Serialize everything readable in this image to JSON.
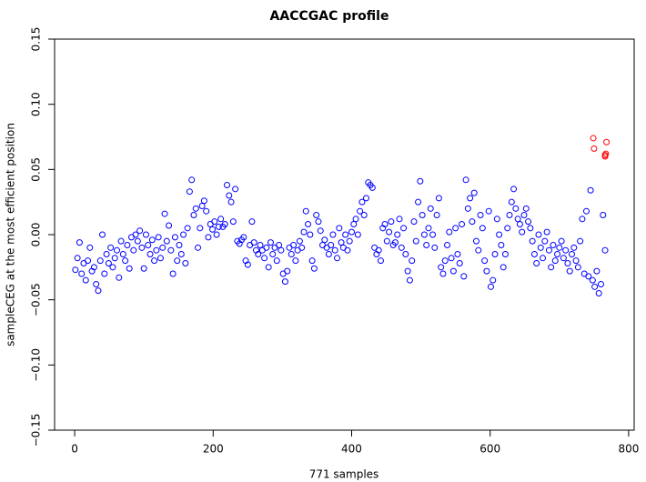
{
  "chart_data": {
    "type": "scatter",
    "title": "AACCGAC profile",
    "x_label": "771 samples",
    "y_label": "sampleCEG at the most efficient position",
    "xlim": [
      -29,
      808
    ],
    "ylim": [
      -0.15,
      0.15
    ],
    "xticks": [
      0,
      200,
      400,
      600,
      800
    ],
    "yticks": [
      {
        "value": -0.15,
        "label": "−0.15"
      },
      {
        "value": -0.1,
        "label": "−0.10"
      },
      {
        "value": -0.05,
        "label": "−0.05"
      },
      {
        "value": 0,
        "label": "0.00"
      },
      {
        "value": 0.05,
        "label": "0.05"
      },
      {
        "value": 0.1,
        "label": "0.10"
      },
      {
        "value": 0.15,
        "label": "0.15"
      }
    ],
    "series": [
      {
        "color": "#0000ff",
        "x": [
          1,
          4,
          7,
          10,
          13,
          16,
          19,
          22,
          25,
          28,
          31,
          34,
          37,
          40,
          43,
          46,
          49,
          52,
          55,
          58,
          61,
          64,
          67,
          70,
          73,
          76,
          79,
          82,
          85,
          88,
          91,
          94,
          97,
          100,
          103,
          106,
          109,
          112,
          115,
          118,
          121,
          124,
          127,
          130,
          133,
          136,
          139,
          142,
          145,
          148,
          151,
          154,
          157,
          160,
          163,
          166,
          169,
          172,
          175,
          178,
          181,
          184,
          187,
          190,
          193,
          196,
          199,
          202,
          205,
          208,
          211,
          214,
          217,
          220,
          223,
          226,
          229,
          232,
          235,
          238,
          241,
          244,
          247,
          250,
          253,
          256,
          259,
          262,
          265,
          268,
          271,
          274,
          277,
          280,
          283,
          286,
          289,
          292,
          295,
          298,
          301,
          304,
          307,
          310,
          313,
          316,
          319,
          322,
          325,
          328,
          331,
          334,
          337,
          340,
          343,
          346,
          349,
          352,
          355,
          358,
          361,
          364,
          367,
          370,
          373,
          376,
          379,
          382,
          385,
          388,
          391,
          394,
          397,
          400,
          403,
          406,
          409,
          412,
          415,
          418,
          421,
          424,
          427,
          430,
          433,
          436,
          439,
          442,
          445,
          448,
          451,
          454,
          457,
          460,
          463,
          466,
          469,
          472,
          475,
          478,
          481,
          484,
          487,
          490,
          493,
          496,
          499,
          502,
          505,
          508,
          511,
          514,
          517,
          520,
          523,
          526,
          529,
          532,
          535,
          538,
          541,
          544,
          547,
          550,
          553,
          556,
          559,
          562,
          565,
          568,
          571,
          574,
          577,
          580,
          583,
          586,
          589,
          592,
          595,
          598,
          601,
          604,
          607,
          610,
          613,
          616,
          619,
          622,
          625,
          628,
          631,
          634,
          637,
          640,
          643,
          646,
          649,
          652,
          655,
          658,
          661,
          664,
          667,
          670,
          673,
          676,
          679,
          682,
          685,
          688,
          691,
          694,
          697,
          700,
          703,
          706,
          709,
          712,
          715,
          718,
          721,
          724,
          727,
          730,
          733,
          736,
          739,
          742,
          745,
          748,
          751,
          754,
          757,
          760,
          763,
          766
        ],
        "values": [
          -0.027,
          -0.018,
          -0.006,
          -0.03,
          -0.022,
          -0.035,
          -0.02,
          -0.01,
          -0.028,
          -0.025,
          -0.038,
          -0.043,
          -0.02,
          0.0,
          -0.03,
          -0.015,
          -0.022,
          -0.01,
          -0.025,
          -0.018,
          -0.012,
          -0.033,
          -0.005,
          -0.015,
          -0.02,
          -0.008,
          -0.026,
          -0.002,
          -0.012,
          0.0,
          -0.005,
          0.003,
          -0.01,
          -0.026,
          0.0,
          -0.008,
          -0.015,
          -0.004,
          -0.02,
          -0.012,
          -0.002,
          -0.018,
          -0.01,
          0.016,
          -0.005,
          0.007,
          -0.012,
          -0.03,
          -0.002,
          -0.02,
          -0.008,
          -0.015,
          0.0,
          -0.022,
          0.005,
          0.033,
          0.042,
          0.015,
          0.02,
          -0.01,
          0.005,
          0.022,
          0.026,
          0.018,
          -0.002,
          0.008,
          0.004,
          0.01,
          0.0,
          0.006,
          0.012,
          0.006,
          0.008,
          0.038,
          0.03,
          0.025,
          0.01,
          0.035,
          -0.005,
          -0.007,
          -0.004,
          -0.002,
          -0.02,
          -0.023,
          -0.008,
          0.01,
          -0.006,
          -0.012,
          -0.015,
          -0.008,
          -0.012,
          -0.018,
          -0.01,
          -0.025,
          -0.006,
          -0.015,
          -0.01,
          -0.02,
          -0.008,
          -0.012,
          -0.03,
          -0.036,
          -0.028,
          -0.01,
          -0.015,
          -0.008,
          -0.02,
          -0.012,
          -0.005,
          -0.01,
          0.002,
          0.018,
          0.008,
          0.0,
          -0.02,
          -0.026,
          0.015,
          0.01,
          0.003,
          -0.008,
          -0.004,
          -0.01,
          -0.015,
          -0.008,
          0.0,
          -0.012,
          -0.018,
          0.005,
          -0.006,
          -0.01,
          0.0,
          -0.012,
          -0.005,
          0.002,
          0.008,
          0.012,
          0.0,
          0.018,
          0.025,
          0.015,
          0.028,
          0.04,
          0.038,
          0.036,
          -0.01,
          -0.015,
          -0.012,
          -0.02,
          0.005,
          0.008,
          -0.005,
          0.002,
          0.01,
          -0.008,
          -0.006,
          0.0,
          0.012,
          -0.01,
          0.005,
          -0.015,
          -0.028,
          -0.035,
          -0.02,
          0.01,
          -0.005,
          0.025,
          0.041,
          0.015,
          0.0,
          -0.008,
          0.005,
          0.02,
          0.0,
          -0.01,
          0.015,
          0.028,
          -0.025,
          -0.03,
          -0.02,
          -0.008,
          0.002,
          -0.018,
          -0.028,
          0.005,
          -0.015,
          -0.022,
          0.008,
          -0.032,
          0.042,
          0.02,
          0.028,
          0.01,
          0.032,
          -0.005,
          -0.012,
          0.015,
          0.005,
          -0.02,
          -0.028,
          0.018,
          -0.04,
          -0.035,
          -0.015,
          0.012,
          0.0,
          -0.008,
          -0.025,
          -0.015,
          0.005,
          0.015,
          0.025,
          0.035,
          0.02,
          0.012,
          0.008,
          0.002,
          0.015,
          0.02,
          0.01,
          0.005,
          -0.005,
          -0.015,
          -0.022,
          0.0,
          -0.01,
          -0.018,
          -0.005,
          0.002,
          -0.012,
          -0.025,
          -0.008,
          -0.02,
          -0.015,
          -0.01,
          -0.005,
          -0.018,
          -0.012,
          -0.022,
          -0.028,
          -0.015,
          -0.01,
          -0.02,
          -0.025,
          -0.005,
          0.012,
          -0.03,
          0.018,
          -0.032,
          0.034,
          -0.035,
          -0.04,
          -0.028,
          -0.045,
          -0.038,
          0.015,
          -0.012
        ]
      },
      {
        "color": "#ff0000",
        "x": [
          749,
          750,
          766,
          767,
          768,
          766
        ],
        "values": [
          0.074,
          0.066,
          0.061,
          0.062,
          0.071,
          0.06
        ]
      }
    ]
  }
}
